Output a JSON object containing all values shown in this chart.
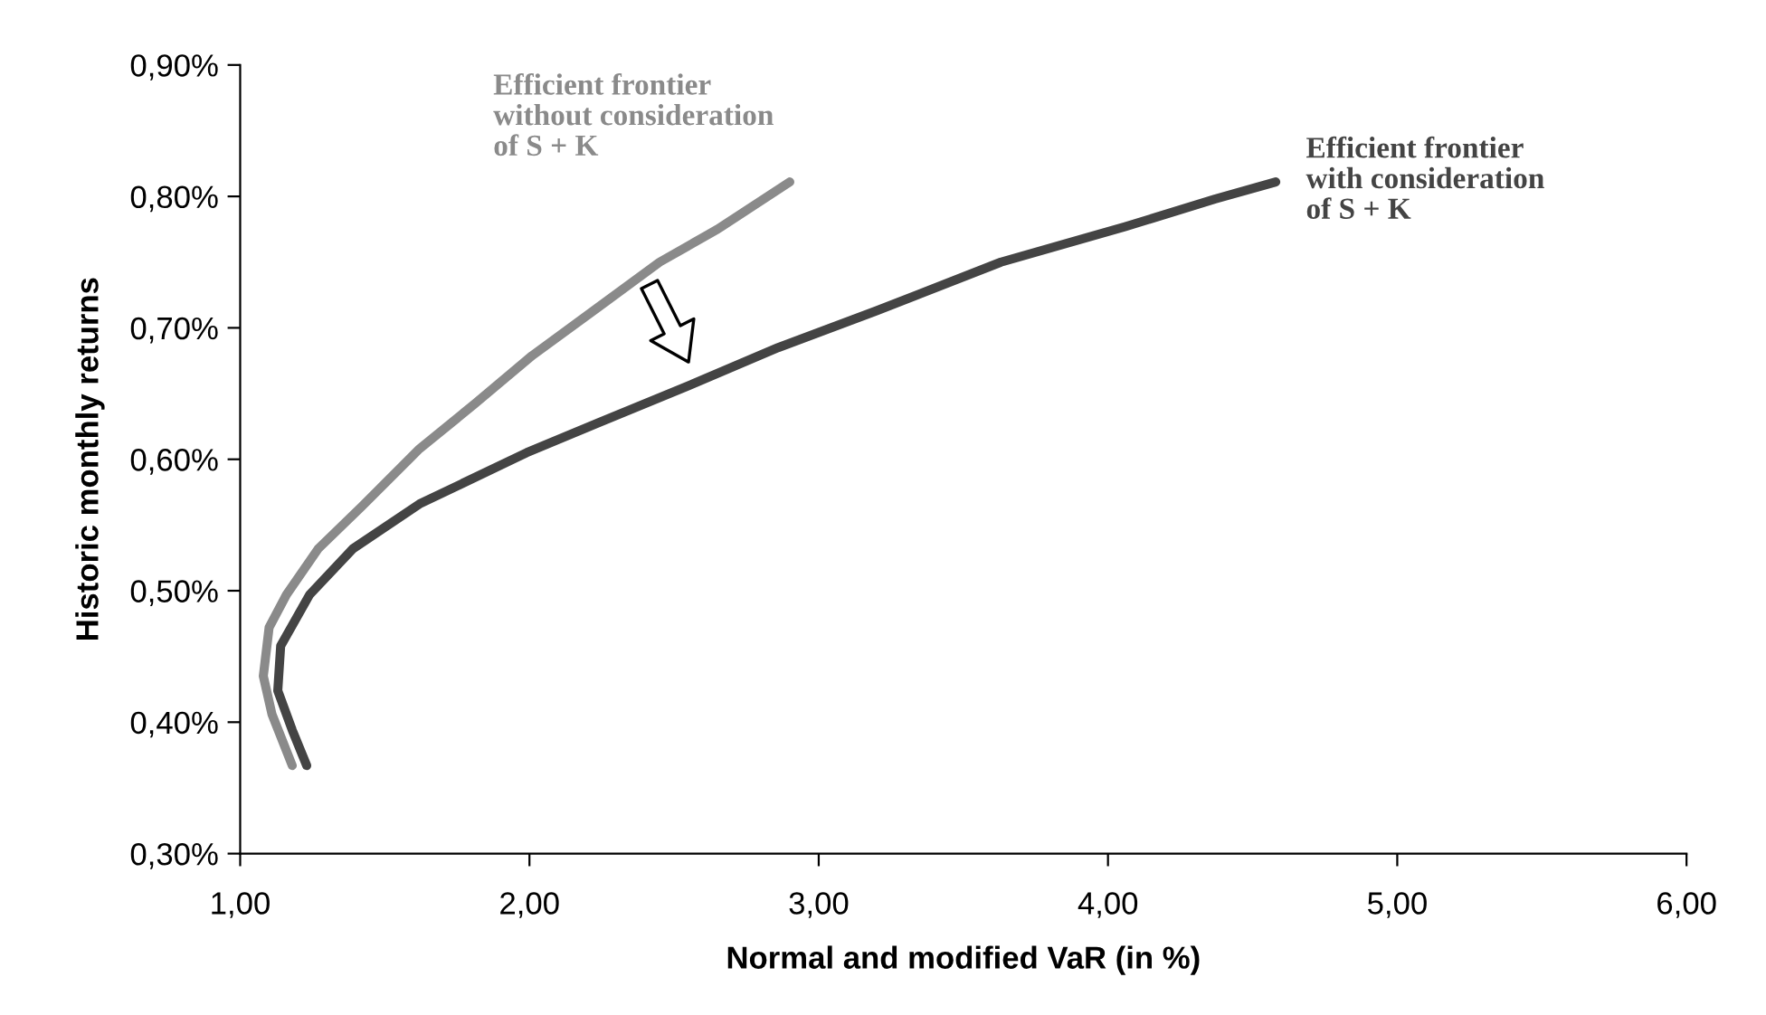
{
  "chart_data": {
    "type": "line",
    "xlabel": "Normal and modified VaR (in %)",
    "ylabel": "Historic monthly returns",
    "xlim": [
      1,
      6
    ],
    "xticks": [
      {
        "value": 1,
        "label": "1,00"
      },
      {
        "value": 2,
        "label": "2,00"
      },
      {
        "value": 3,
        "label": "3,00"
      },
      {
        "value": 4,
        "label": "4,00"
      },
      {
        "value": 5,
        "label": "5,00"
      },
      {
        "value": 6,
        "label": "6,00"
      }
    ],
    "ylim": [
      0.3,
      0.9
    ],
    "yticks": [
      {
        "value": 0.3,
        "label": "0,30%"
      },
      {
        "value": 0.4,
        "label": "0,40%"
      },
      {
        "value": 0.5,
        "label": "0,50%"
      },
      {
        "value": 0.6,
        "label": "0,60%"
      },
      {
        "value": 0.7,
        "label": "0,70%"
      },
      {
        "value": 0.8,
        "label": "0,80%"
      },
      {
        "value": 0.9,
        "label": "0,90%"
      }
    ],
    "grid": false,
    "legend": false,
    "marker": "none",
    "line_style": "solid",
    "series": [
      {
        "color": "#8a8a8a",
        "x": [
          1.18,
          1.11,
          1.08,
          1.1,
          1.16,
          1.27,
          1.42,
          1.62,
          1.81,
          2.01,
          2.24,
          2.45,
          2.65,
          2.9
        ],
        "values": [
          0.367,
          0.406,
          0.435,
          0.472,
          0.497,
          0.532,
          0.564,
          0.608,
          0.642,
          0.679,
          0.716,
          0.75,
          0.775,
          0.811
        ]
      },
      {
        "color": "#444444",
        "x": [
          1.23,
          1.18,
          1.13,
          1.14,
          1.24,
          1.39,
          1.62,
          1.99,
          2.24,
          2.55,
          2.86,
          3.2,
          3.63,
          4.06,
          4.37,
          4.58
        ],
        "values": [
          0.367,
          0.394,
          0.424,
          0.458,
          0.497,
          0.532,
          0.566,
          0.605,
          0.628,
          0.656,
          0.685,
          0.713,
          0.75,
          0.777,
          0.798,
          0.811
        ]
      }
    ],
    "annotations": [
      {
        "text": "Efficient frontier\nwithout consideration\nof S + K",
        "x": 2.9,
        "y": 0.811
      },
      {
        "text": "Efficient frontier\nwith consideration\nof S + K",
        "x": 4.58,
        "y": 0.811
      }
    ]
  }
}
